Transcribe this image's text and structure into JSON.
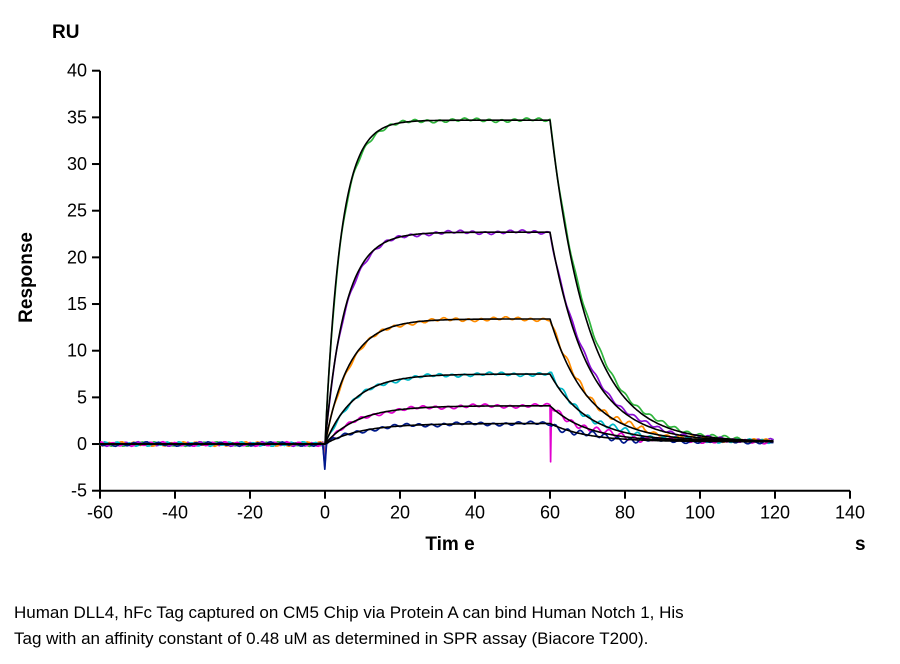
{
  "caption": {
    "line1": "Human DLL4, hFc Tag captured on CM5 Chip via Protein A can bind Human Notch 1, His",
    "line2": "Tag with an affinity constant of 0.48 uM as determined in SPR assay (Biacore T200)."
  },
  "chart_data": {
    "type": "line",
    "title": "",
    "xlabel": "Tim e",
    "x_unit_label": "s",
    "ylabel": "Response",
    "y_unit_label": "RU",
    "xlim": [
      -60,
      140
    ],
    "ylim": [
      -5,
      40
    ],
    "x_ticks": [
      -60,
      -40,
      -20,
      0,
      20,
      40,
      60,
      80,
      100,
      120,
      140
    ],
    "y_ticks": [
      -5,
      0,
      5,
      10,
      15,
      20,
      25,
      30,
      35,
      40
    ],
    "grid": false,
    "legend": "none",
    "axis_color": "#000000",
    "fit_color": "#000000",
    "baseline_ru": 0,
    "association_start_s": 0,
    "association_end_s": 60,
    "trace_end_s": 120,
    "injection_spike_ru": -2.7,
    "dissociation_tail_ru": 0.25,
    "series": [
      {
        "name": "concentration-1",
        "color": "#2fb53c",
        "plateau_ru": 34.7,
        "k_obs": 0.24,
        "k_off": 0.1
      },
      {
        "name": "concentration-2",
        "color": "#8a0fd4",
        "plateau_ru": 22.7,
        "k_obs": 0.19,
        "k_off": 0.1
      },
      {
        "name": "concentration-3",
        "color": "#ff8c00",
        "plateau_ru": 13.4,
        "k_obs": 0.155,
        "k_off": 0.1
      },
      {
        "name": "concentration-4",
        "color": "#00b9c8",
        "plateau_ru": 7.5,
        "k_obs": 0.13,
        "k_off": 0.1
      },
      {
        "name": "concentration-5",
        "color": "#e100cf",
        "plateau_ru": 4.1,
        "k_obs": 0.115,
        "k_off": 0.1
      },
      {
        "name": "concentration-6",
        "color": "#001a8c",
        "plateau_ru": 2.2,
        "k_obs": 0.105,
        "k_off": 0.1
      }
    ]
  }
}
